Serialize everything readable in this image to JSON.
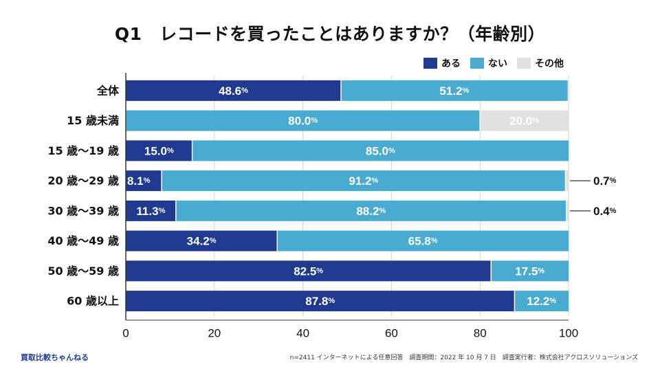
{
  "title": "Q1　レコードを買ったことはありますか？（年齢別）",
  "legend": [
    {
      "label": "ある",
      "color": "#1f3a8f"
    },
    {
      "label": "ない",
      "color": "#4aabd0"
    },
    {
      "label": "その他",
      "color": "#e0e0e0"
    }
  ],
  "colors": {
    "yes": "#1f3a8f",
    "no": "#4aabd0",
    "other": "#e0e0e0",
    "grid": "#cfcfcf",
    "axis": "#333333"
  },
  "percent_suffix": "%",
  "chart_data": {
    "type": "bar",
    "orientation": "horizontal",
    "stacked": true,
    "title": "Q1　レコードを買ったことはありますか？（年齢別）",
    "categories": [
      "全体",
      "15 歳未満",
      "15 歳〜19 歳",
      "20 歳〜29 歳",
      "30 歳〜39 歳",
      "40 歳〜49 歳",
      "50 歳〜59 歳",
      "60 歳以上"
    ],
    "series": [
      {
        "name": "ある",
        "values": [
          48.6,
          0,
          15.0,
          8.1,
          11.3,
          34.2,
          82.5,
          87.8
        ]
      },
      {
        "name": "ない",
        "values": [
          51.2,
          80.0,
          85.0,
          91.2,
          88.2,
          65.8,
          17.5,
          12.2
        ]
      },
      {
        "name": "その他",
        "values": [
          0,
          20.0,
          0,
          0.7,
          0.4,
          0,
          0,
          0
        ]
      }
    ],
    "labels": {
      "ある": [
        "48.6",
        "",
        "15.0",
        "8.1",
        "11.3",
        "34.2",
        "82.5",
        "87.8"
      ],
      "ない": [
        "51.2",
        "80.0",
        "85.0",
        "91.2",
        "88.2",
        "65.8",
        "17.5",
        "12.2"
      ],
      "その他": [
        "",
        "20.0",
        "",
        "0.7",
        "0.4",
        "",
        "",
        ""
      ]
    },
    "xlim": [
      0,
      100
    ],
    "xticks": [
      0,
      20,
      40,
      60,
      80,
      100
    ],
    "xlabel": "",
    "ylabel": ""
  },
  "footer": {
    "left": "買取比較ちゃんねる",
    "right": "n=2411 インターネットによる任意回答　調査期間：2022 年 10 月 7 日　調査実行者：株式会社アクロスソリューションズ"
  }
}
